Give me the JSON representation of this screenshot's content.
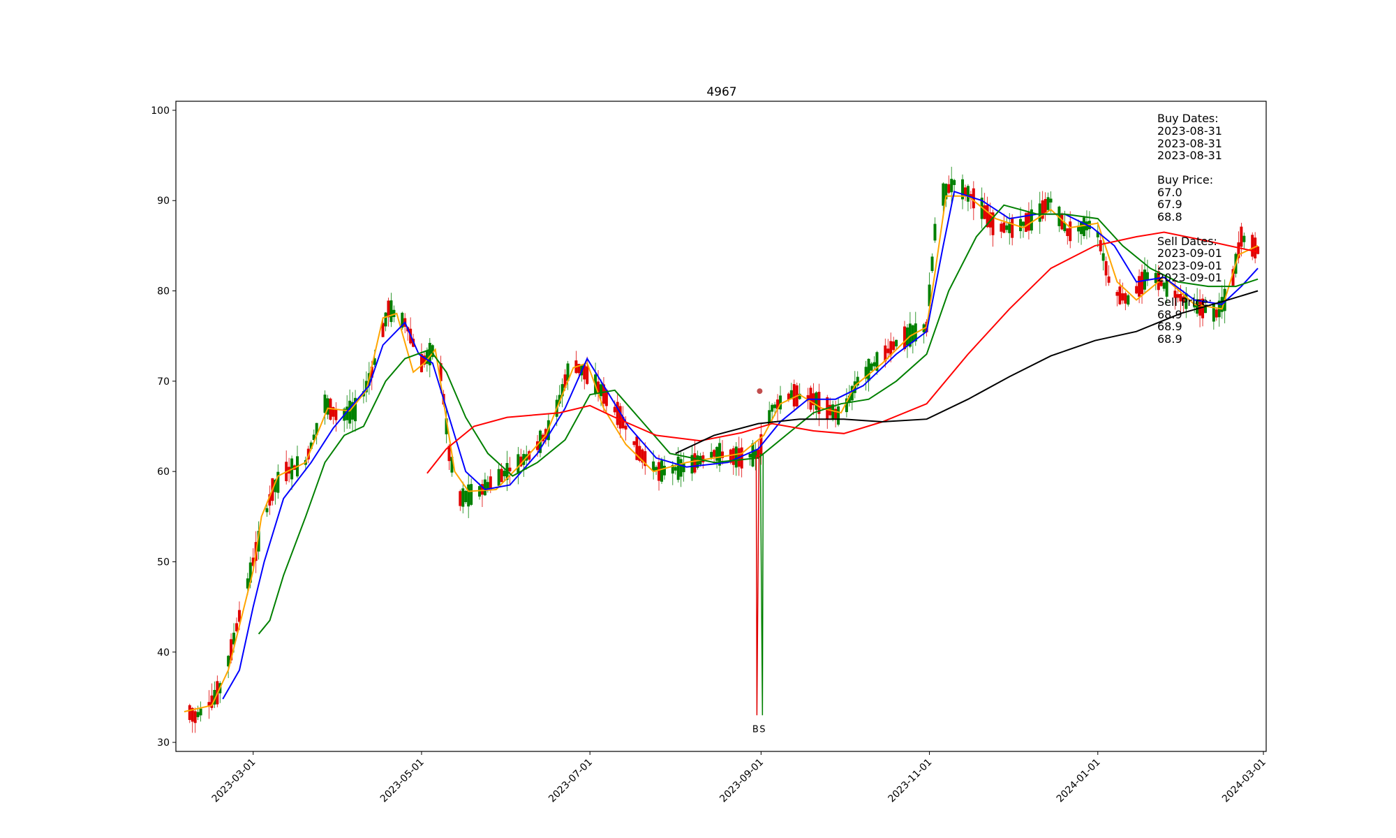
{
  "chart_data": {
    "type": "candlestick",
    "title": "4967",
    "ylim": [
      29,
      101
    ],
    "y_ticks": [
      30,
      40,
      50,
      60,
      70,
      80,
      90,
      100
    ],
    "x_range": [
      "2023-02-01",
      "2024-03-02"
    ],
    "x_ticks": [
      "2023-03-01",
      "2023-05-01",
      "2023-07-01",
      "2023-09-01",
      "2023-11-01",
      "2024-01-01",
      "2024-03-01"
    ],
    "grid": false,
    "colors": {
      "up": "#008000",
      "down": "#e00000",
      "ma5": "#ffa500",
      "ma10": "#0000ff",
      "ma20": "#008000",
      "ma60": "#ff0000",
      "ma120": "#000000",
      "axes": "#000000"
    },
    "ohlc_keyframes": [
      [
        "2023-02-04",
        33.8
      ],
      [
        "2023-02-08",
        32.8
      ],
      [
        "2023-02-14",
        34.5
      ],
      [
        "2023-02-18",
        36.5
      ],
      [
        "2023-02-24",
        44.0
      ],
      [
        "2023-03-01",
        50.0
      ],
      [
        "2023-03-08",
        58.0
      ],
      [
        "2023-03-13",
        60.0
      ],
      [
        "2023-03-20",
        61.0
      ],
      [
        "2023-03-27",
        67.5
      ],
      [
        "2023-04-01",
        66.0
      ],
      [
        "2023-04-08",
        67.0
      ],
      [
        "2023-04-13",
        71.0
      ],
      [
        "2023-04-19",
        78.0
      ],
      [
        "2023-04-25",
        76.5
      ],
      [
        "2023-05-01",
        72.0
      ],
      [
        "2023-05-07",
        74.0
      ],
      [
        "2023-05-11",
        62.0
      ],
      [
        "2023-05-15",
        57.0
      ],
      [
        "2023-05-22",
        57.8
      ],
      [
        "2023-06-01",
        60.0
      ],
      [
        "2023-06-10",
        62.0
      ],
      [
        "2023-06-17",
        65.0
      ],
      [
        "2023-06-24",
        72.0
      ],
      [
        "2023-06-29",
        71.0
      ],
      [
        "2023-07-05",
        69.0
      ],
      [
        "2023-07-12",
        66.0
      ],
      [
        "2023-07-19",
        62.0
      ],
      [
        "2023-07-26",
        60.0
      ],
      [
        "2023-08-05",
        60.5
      ],
      [
        "2023-08-15",
        62.0
      ],
      [
        "2023-08-25",
        61.5
      ],
      [
        "2023-08-31",
        62.0
      ],
      [
        "2023-09-05",
        67.0
      ],
      [
        "2023-09-12",
        68.5
      ],
      [
        "2023-09-20",
        68.0
      ],
      [
        "2023-09-30",
        66.0
      ],
      [
        "2023-10-06",
        70.0
      ],
      [
        "2023-10-14",
        72.5
      ],
      [
        "2023-10-21",
        74.5
      ],
      [
        "2023-10-31",
        76.0
      ],
      [
        "2023-11-04",
        90.0
      ],
      [
        "2023-11-10",
        92.0
      ],
      [
        "2023-11-18",
        90.0
      ],
      [
        "2023-11-25",
        87.0
      ],
      [
        "2023-12-02",
        87.0
      ],
      [
        "2023-12-09",
        88.0
      ],
      [
        "2023-12-15",
        90.0
      ],
      [
        "2023-12-21",
        86.5
      ],
      [
        "2023-12-31",
        87.5
      ],
      [
        "2024-01-06",
        80.0
      ],
      [
        "2024-01-12",
        79.0
      ],
      [
        "2024-01-20",
        82.0
      ],
      [
        "2024-01-27",
        80.0
      ],
      [
        "2024-02-04",
        78.5
      ],
      [
        "2024-02-13",
        77.5
      ],
      [
        "2024-02-18",
        80.0
      ],
      [
        "2024-02-22",
        86.0
      ],
      [
        "2024-02-28",
        84.5
      ]
    ],
    "moving_averages": [
      {
        "key": "ma5",
        "points": [
          [
            "2023-02-04",
            33.4
          ],
          [
            "2023-02-14",
            34.1
          ],
          [
            "2023-02-20",
            38.0
          ],
          [
            "2023-03-01",
            49.0
          ],
          [
            "2023-03-04",
            55.0
          ],
          [
            "2023-03-10",
            59.5
          ],
          [
            "2023-03-20",
            61.0
          ],
          [
            "2023-03-28",
            67.0
          ],
          [
            "2023-04-05",
            66.7
          ],
          [
            "2023-04-11",
            69.0
          ],
          [
            "2023-04-17",
            77.0
          ],
          [
            "2023-04-22",
            77.5
          ],
          [
            "2023-04-28",
            71.0
          ],
          [
            "2023-05-02",
            72.0
          ],
          [
            "2023-05-06",
            73.5
          ],
          [
            "2023-05-13",
            60.0
          ],
          [
            "2023-05-18",
            57.8
          ],
          [
            "2023-05-28",
            58.0
          ],
          [
            "2023-06-05",
            60.5
          ],
          [
            "2023-06-15",
            64.0
          ],
          [
            "2023-06-25",
            71.5
          ],
          [
            "2023-06-30",
            72.0
          ],
          [
            "2023-07-06",
            67.0
          ],
          [
            "2023-07-14",
            63.0
          ],
          [
            "2023-07-24",
            60.0
          ],
          [
            "2023-08-05",
            61.0
          ],
          [
            "2023-08-15",
            61.5
          ],
          [
            "2023-08-25",
            62.0
          ],
          [
            "2023-09-02",
            64.0
          ],
          [
            "2023-09-08",
            67.5
          ],
          [
            "2023-09-15",
            68.5
          ],
          [
            "2023-09-23",
            67.0
          ],
          [
            "2023-09-30",
            66.5
          ],
          [
            "2023-10-05",
            69.5
          ],
          [
            "2023-10-15",
            72.0
          ],
          [
            "2023-10-25",
            75.0
          ],
          [
            "2023-10-31",
            76.0
          ],
          [
            "2023-11-03",
            82.0
          ],
          [
            "2023-11-07",
            90.5
          ],
          [
            "2023-11-15",
            90.5
          ],
          [
            "2023-11-25",
            88.0
          ],
          [
            "2023-12-05",
            87.0
          ],
          [
            "2023-12-15",
            89.0
          ],
          [
            "2023-12-22",
            87.0
          ],
          [
            "2024-01-01",
            87.5
          ],
          [
            "2024-01-08",
            81.0
          ],
          [
            "2024-01-15",
            79.0
          ],
          [
            "2024-01-25",
            81.5
          ],
          [
            "2024-02-05",
            78.5
          ],
          [
            "2024-02-15",
            78.0
          ],
          [
            "2024-02-21",
            84.0
          ],
          [
            "2024-02-28",
            85.0
          ]
        ]
      },
      {
        "key": "ma10",
        "points": [
          [
            "2023-02-18",
            34.8
          ],
          [
            "2023-02-24",
            38.0
          ],
          [
            "2023-03-01",
            45.0
          ],
          [
            "2023-03-05",
            50.0
          ],
          [
            "2023-03-12",
            57.0
          ],
          [
            "2023-03-22",
            61.0
          ],
          [
            "2023-03-30",
            64.8
          ],
          [
            "2023-04-05",
            67.0
          ],
          [
            "2023-04-12",
            69.5
          ],
          [
            "2023-04-17",
            74.0
          ],
          [
            "2023-04-25",
            76.5
          ],
          [
            "2023-04-30",
            73.0
          ],
          [
            "2023-05-05",
            72.0
          ],
          [
            "2023-05-10",
            67.0
          ],
          [
            "2023-05-17",
            60.0
          ],
          [
            "2023-05-24",
            58.0
          ],
          [
            "2023-06-02",
            58.5
          ],
          [
            "2023-06-12",
            62.0
          ],
          [
            "2023-06-22",
            67.0
          ],
          [
            "2023-06-30",
            72.5
          ],
          [
            "2023-07-07",
            69.0
          ],
          [
            "2023-07-15",
            65.0
          ],
          [
            "2023-07-25",
            61.5
          ],
          [
            "2023-08-05",
            60.5
          ],
          [
            "2023-08-20",
            61.0
          ],
          [
            "2023-08-31",
            62.5
          ],
          [
            "2023-09-08",
            65.5
          ],
          [
            "2023-09-18",
            68.0
          ],
          [
            "2023-09-28",
            68.0
          ],
          [
            "2023-10-08",
            69.5
          ],
          [
            "2023-10-20",
            73.0
          ],
          [
            "2023-10-31",
            75.5
          ],
          [
            "2023-11-06",
            85.0
          ],
          [
            "2023-11-10",
            91.0
          ],
          [
            "2023-11-20",
            90.0
          ],
          [
            "2023-11-30",
            88.0
          ],
          [
            "2023-12-10",
            88.5
          ],
          [
            "2023-12-20",
            88.5
          ],
          [
            "2023-12-30",
            87.0
          ],
          [
            "2024-01-07",
            85.0
          ],
          [
            "2024-01-15",
            81.0
          ],
          [
            "2024-01-25",
            81.5
          ],
          [
            "2024-02-05",
            79.0
          ],
          [
            "2024-02-15",
            78.5
          ],
          [
            "2024-02-22",
            80.5
          ],
          [
            "2024-02-28",
            82.5
          ]
        ]
      },
      {
        "key": "ma20",
        "points": [
          [
            "2023-03-03",
            42.0
          ],
          [
            "2023-03-07",
            43.5
          ],
          [
            "2023-03-12",
            48.5
          ],
          [
            "2023-03-20",
            55.0
          ],
          [
            "2023-03-27",
            61.0
          ],
          [
            "2023-04-03",
            64.0
          ],
          [
            "2023-04-10",
            65.0
          ],
          [
            "2023-04-18",
            70.0
          ],
          [
            "2023-04-25",
            72.5
          ],
          [
            "2023-05-04",
            73.5
          ],
          [
            "2023-05-10",
            71.0
          ],
          [
            "2023-05-17",
            66.0
          ],
          [
            "2023-05-25",
            62.0
          ],
          [
            "2023-06-03",
            59.5
          ],
          [
            "2023-06-12",
            61.0
          ],
          [
            "2023-06-22",
            63.5
          ],
          [
            "2023-07-01",
            68.5
          ],
          [
            "2023-07-10",
            69.0
          ],
          [
            "2023-07-20",
            65.5
          ],
          [
            "2023-07-30",
            62.0
          ],
          [
            "2023-08-15",
            61.0
          ],
          [
            "2023-08-31",
            61.5
          ],
          [
            "2023-09-10",
            64.0
          ],
          [
            "2023-09-20",
            66.5
          ],
          [
            "2023-09-30",
            67.5
          ],
          [
            "2023-10-10",
            68.0
          ],
          [
            "2023-10-20",
            70.0
          ],
          [
            "2023-10-31",
            73.0
          ],
          [
            "2023-11-08",
            80.0
          ],
          [
            "2023-11-18",
            86.0
          ],
          [
            "2023-11-28",
            89.5
          ],
          [
            "2023-12-10",
            88.5
          ],
          [
            "2023-12-20",
            88.5
          ],
          [
            "2024-01-01",
            88.0
          ],
          [
            "2024-01-10",
            85.0
          ],
          [
            "2024-01-20",
            82.5
          ],
          [
            "2024-01-30",
            81.0
          ],
          [
            "2024-02-10",
            80.5
          ],
          [
            "2024-02-20",
            80.5
          ],
          [
            "2024-02-28",
            81.3
          ]
        ]
      },
      {
        "key": "ma60",
        "points": [
          [
            "2023-05-03",
            59.8
          ],
          [
            "2023-05-10",
            62.5
          ],
          [
            "2023-05-20",
            65.0
          ],
          [
            "2023-06-01",
            66.0
          ],
          [
            "2023-06-20",
            66.5
          ],
          [
            "2023-07-01",
            67.3
          ],
          [
            "2023-07-10",
            66.0
          ],
          [
            "2023-07-25",
            64.0
          ],
          [
            "2023-08-10",
            63.4
          ],
          [
            "2023-08-25",
            64.3
          ],
          [
            "2023-09-05",
            65.3
          ],
          [
            "2023-09-20",
            64.5
          ],
          [
            "2023-10-01",
            64.2
          ],
          [
            "2023-10-15",
            65.5
          ],
          [
            "2023-10-31",
            67.5
          ],
          [
            "2023-11-15",
            73.0
          ],
          [
            "2023-11-30",
            78.0
          ],
          [
            "2023-12-15",
            82.5
          ],
          [
            "2023-12-31",
            85.0
          ],
          [
            "2024-01-15",
            86.0
          ],
          [
            "2024-01-25",
            86.5
          ],
          [
            "2024-02-10",
            85.5
          ],
          [
            "2024-02-28",
            84.3
          ]
        ]
      },
      {
        "key": "ma120",
        "points": [
          [
            "2023-08-01",
            62.0
          ],
          [
            "2023-08-15",
            64.0
          ],
          [
            "2023-08-31",
            65.3
          ],
          [
            "2023-09-15",
            65.8
          ],
          [
            "2023-10-01",
            65.8
          ],
          [
            "2023-10-15",
            65.5
          ],
          [
            "2023-10-31",
            65.8
          ],
          [
            "2023-11-15",
            68.0
          ],
          [
            "2023-11-30",
            70.5
          ],
          [
            "2023-12-15",
            72.8
          ],
          [
            "2023-12-31",
            74.5
          ],
          [
            "2024-01-15",
            75.5
          ],
          [
            "2024-01-31",
            77.5
          ],
          [
            "2024-02-15",
            78.8
          ],
          [
            "2024-02-28",
            80.0
          ]
        ]
      }
    ],
    "trade_markers": [
      {
        "label": "B",
        "date": "2023-08-31",
        "y": 31.5
      },
      {
        "label": "S",
        "date": "2023-09-01",
        "y": 31.5
      }
    ],
    "annotation_text": {
      "buy_dates_label": "Buy Dates:",
      "buy_dates": [
        "2023-08-31",
        "2023-08-31",
        "2023-08-31"
      ],
      "buy_price_label": "Buy Price:",
      "buy_prices": [
        "67.0",
        "67.9",
        "68.8"
      ],
      "sell_dates_label": "Sell Dates:",
      "sell_dates": [
        "2023-09-01",
        "2023-09-01",
        "2023-09-01"
      ],
      "sell_price_label": "Sell Price:",
      "sell_prices": [
        "68.9",
        "68.9",
        "68.9"
      ]
    }
  }
}
